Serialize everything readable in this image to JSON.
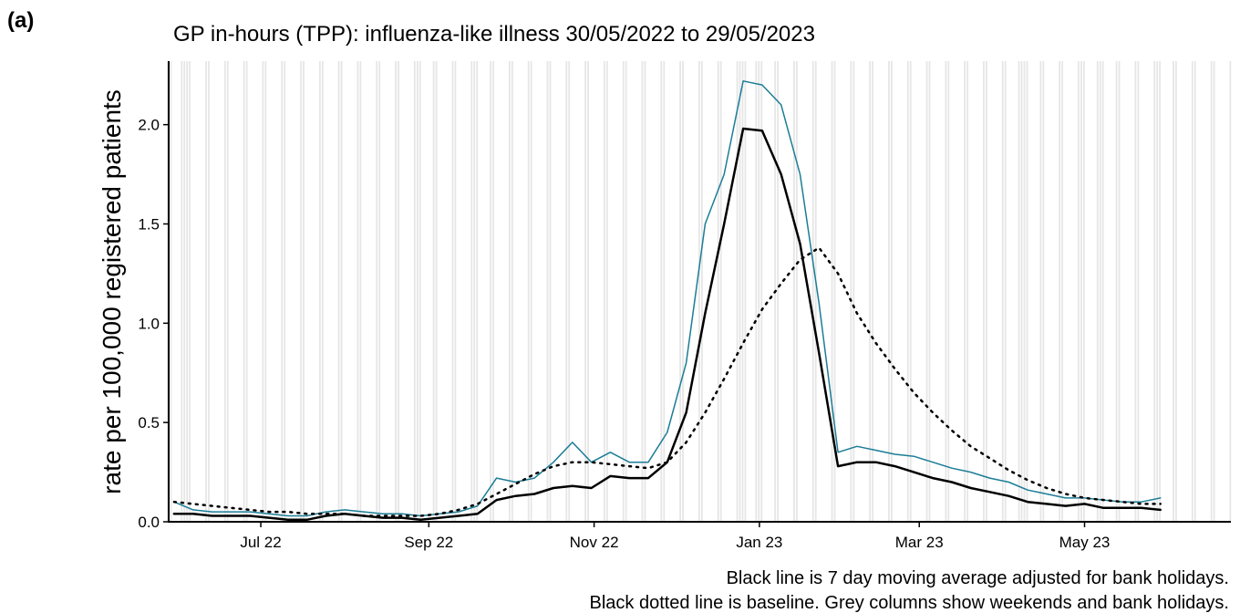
{
  "chart_data": {
    "type": "line",
    "panel_label": "(a)",
    "title": "GP in-hours (TPP): influenza-like illness 30/05/2022 to 29/05/2023",
    "y_label": "rate per 100,000 registered patients",
    "notes": [
      "Black line is 7 day moving average adjusted for bank holidays.",
      "Black dotted line is baseline. Grey columns show weekends and bank holidays."
    ],
    "x": [
      "2022-05-30",
      "2022-06-06",
      "2022-06-13",
      "2022-06-20",
      "2022-06-27",
      "2022-07-04",
      "2022-07-11",
      "2022-07-18",
      "2022-07-25",
      "2022-08-01",
      "2022-08-08",
      "2022-08-15",
      "2022-08-22",
      "2022-08-29",
      "2022-09-05",
      "2022-09-12",
      "2022-09-19",
      "2022-09-26",
      "2022-10-03",
      "2022-10-10",
      "2022-10-17",
      "2022-10-24",
      "2022-10-31",
      "2022-11-07",
      "2022-11-14",
      "2022-11-21",
      "2022-11-28",
      "2022-12-05",
      "2022-12-12",
      "2022-12-19",
      "2022-12-26",
      "2023-01-02",
      "2023-01-09",
      "2023-01-16",
      "2023-01-23",
      "2023-01-30",
      "2023-02-06",
      "2023-02-13",
      "2023-02-20",
      "2023-02-27",
      "2023-03-06",
      "2023-03-13",
      "2023-03-20",
      "2023-03-27",
      "2023-04-03",
      "2023-04-10",
      "2023-04-17",
      "2023-04-24",
      "2023-05-01",
      "2023-05-08",
      "2023-05-15",
      "2023-05-22",
      "2023-05-29"
    ],
    "series": [
      {
        "color": "#1b7d96",
        "width": 1.5,
        "dash": "none",
        "values": [
          0.1,
          0.06,
          0.05,
          0.05,
          0.05,
          0.04,
          0.03,
          0.03,
          0.05,
          0.06,
          0.05,
          0.04,
          0.04,
          0.03,
          0.04,
          0.05,
          0.08,
          0.22,
          0.2,
          0.22,
          0.3,
          0.4,
          0.3,
          0.35,
          0.3,
          0.3,
          0.45,
          0.8,
          1.5,
          1.75,
          2.22,
          2.2,
          2.1,
          1.75,
          1.1,
          0.35,
          0.38,
          0.36,
          0.34,
          0.33,
          0.3,
          0.27,
          0.25,
          0.22,
          0.2,
          0.16,
          0.14,
          0.12,
          0.12,
          0.11,
          0.1,
          0.1,
          0.12
        ]
      },
      {
        "color": "#000000",
        "width": 2.5,
        "dash": "none",
        "values": [
          0.04,
          0.04,
          0.03,
          0.03,
          0.03,
          0.02,
          0.01,
          0.01,
          0.03,
          0.04,
          0.03,
          0.02,
          0.02,
          0.01,
          0.02,
          0.03,
          0.04,
          0.11,
          0.13,
          0.14,
          0.17,
          0.18,
          0.17,
          0.23,
          0.22,
          0.22,
          0.3,
          0.55,
          1.05,
          1.5,
          1.98,
          1.97,
          1.75,
          1.4,
          0.85,
          0.28,
          0.3,
          0.3,
          0.28,
          0.25,
          0.22,
          0.2,
          0.17,
          0.15,
          0.13,
          0.1,
          0.09,
          0.08,
          0.09,
          0.07,
          0.07,
          0.07,
          0.06
        ]
      },
      {
        "color": "#000000",
        "width": 2.5,
        "dash": "2 6",
        "values": [
          0.1,
          0.09,
          0.08,
          0.07,
          0.06,
          0.05,
          0.05,
          0.04,
          0.04,
          0.04,
          0.03,
          0.03,
          0.03,
          0.03,
          0.04,
          0.06,
          0.09,
          0.14,
          0.19,
          0.24,
          0.28,
          0.3,
          0.3,
          0.29,
          0.28,
          0.27,
          0.3,
          0.4,
          0.55,
          0.72,
          0.9,
          1.07,
          1.2,
          1.32,
          1.38,
          1.25,
          1.05,
          0.9,
          0.77,
          0.65,
          0.55,
          0.46,
          0.38,
          0.32,
          0.26,
          0.21,
          0.17,
          0.14,
          0.12,
          0.11,
          0.1,
          0.09,
          0.09
        ]
      }
    ],
    "bank_holidays": [
      "2022-06-02",
      "2022-06-03",
      "2022-08-29",
      "2022-09-19",
      "2022-12-26",
      "2022-12-27",
      "2023-01-02",
      "2023-04-07",
      "2023-04-10",
      "2023-05-01",
      "2023-05-08",
      "2023-05-29"
    ],
    "column_color": "#e6e6e6",
    "xlim": [
      "2022-05-28",
      "2023-06-24"
    ],
    "xticks": [
      {
        "value": "2022-07-01",
        "label": "Jul 22"
      },
      {
        "value": "2022-09-01",
        "label": "Sep 22"
      },
      {
        "value": "2022-11-01",
        "label": "Nov 22"
      },
      {
        "value": "2023-01-01",
        "label": "Jan 23"
      },
      {
        "value": "2023-03-01",
        "label": "Mar 23"
      },
      {
        "value": "2023-05-01",
        "label": "May 23"
      }
    ],
    "ylim": [
      0,
      2.32
    ],
    "yticks": [
      {
        "value": 0,
        "label": "0.0"
      },
      0.5,
      {
        "value": 1,
        "label": "1.0"
      },
      1.5,
      {
        "value": 2,
        "label": "2.0"
      }
    ]
  }
}
